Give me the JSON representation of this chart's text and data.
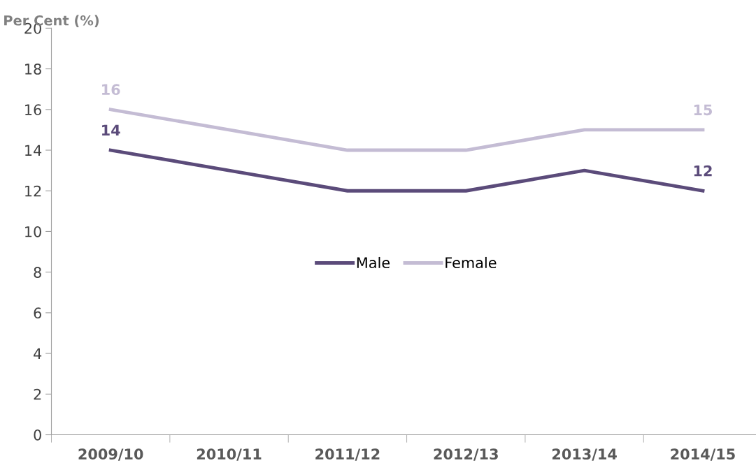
{
  "chart_data": {
    "type": "line",
    "ylabel": "Per Cent (%)",
    "categories": [
      "2009/10",
      "2010/11",
      "2011/12",
      "2012/13",
      "2013/14",
      "2014/15"
    ],
    "series": [
      {
        "name": "Male",
        "color": "#5b4b7a",
        "values": [
          14,
          13,
          12,
          12,
          13,
          12
        ],
        "value_labels": [
          "14",
          null,
          null,
          null,
          null,
          "12"
        ]
      },
      {
        "name": "Female",
        "color": "#c4bcd4",
        "values": [
          16,
          15,
          14,
          14,
          15,
          15
        ],
        "value_labels": [
          "16",
          null,
          null,
          null,
          null,
          "15"
        ]
      }
    ],
    "ylim": [
      0,
      20
    ],
    "yticks": [
      0,
      2,
      4,
      6,
      8,
      10,
      12,
      14,
      16,
      18,
      20
    ],
    "grid": false,
    "legend": "center",
    "marker": "none",
    "line_style": "solid"
  }
}
